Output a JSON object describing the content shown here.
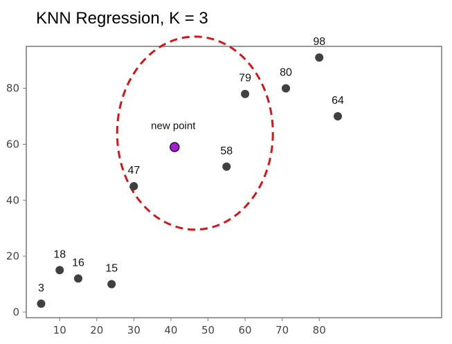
{
  "chart_data": {
    "type": "scatter",
    "title": "KNN Regression, K = 3",
    "xlabel": "",
    "ylabel": "",
    "xlim": [
      1,
      113
    ],
    "ylim": [
      -2,
      95
    ],
    "x_ticks": [
      10,
      20,
      30,
      40,
      50,
      60,
      70,
      80
    ],
    "y_ticks": [
      0,
      20,
      40,
      60,
      80
    ],
    "grid": false,
    "points": [
      {
        "x": 5,
        "y": 3,
        "label": "3"
      },
      {
        "x": 10,
        "y": 15,
        "label": "18"
      },
      {
        "x": 15,
        "y": 12,
        "label": "16"
      },
      {
        "x": 24,
        "y": 10,
        "label": "15"
      },
      {
        "x": 30,
        "y": 45,
        "label": "47"
      },
      {
        "x": 55,
        "y": 52,
        "label": "58"
      },
      {
        "x": 60,
        "y": 78,
        "label": "79"
      },
      {
        "x": 71,
        "y": 80,
        "label": "80"
      },
      {
        "x": 80,
        "y": 91,
        "label": "98"
      },
      {
        "x": 85,
        "y": 70,
        "label": "64"
      }
    ],
    "new_point": {
      "x": 41,
      "y": 59,
      "label": "new point"
    },
    "neighborhood": {
      "center_x": 46.5,
      "center_y": 64,
      "radius_x": 21,
      "radius_y": 34.5
    },
    "colors": {
      "point": "#404040",
      "new_point_fill": "#a020d0",
      "new_point_stroke": "#2a0840",
      "circle": "#d4161c",
      "axes": "#777777"
    }
  }
}
